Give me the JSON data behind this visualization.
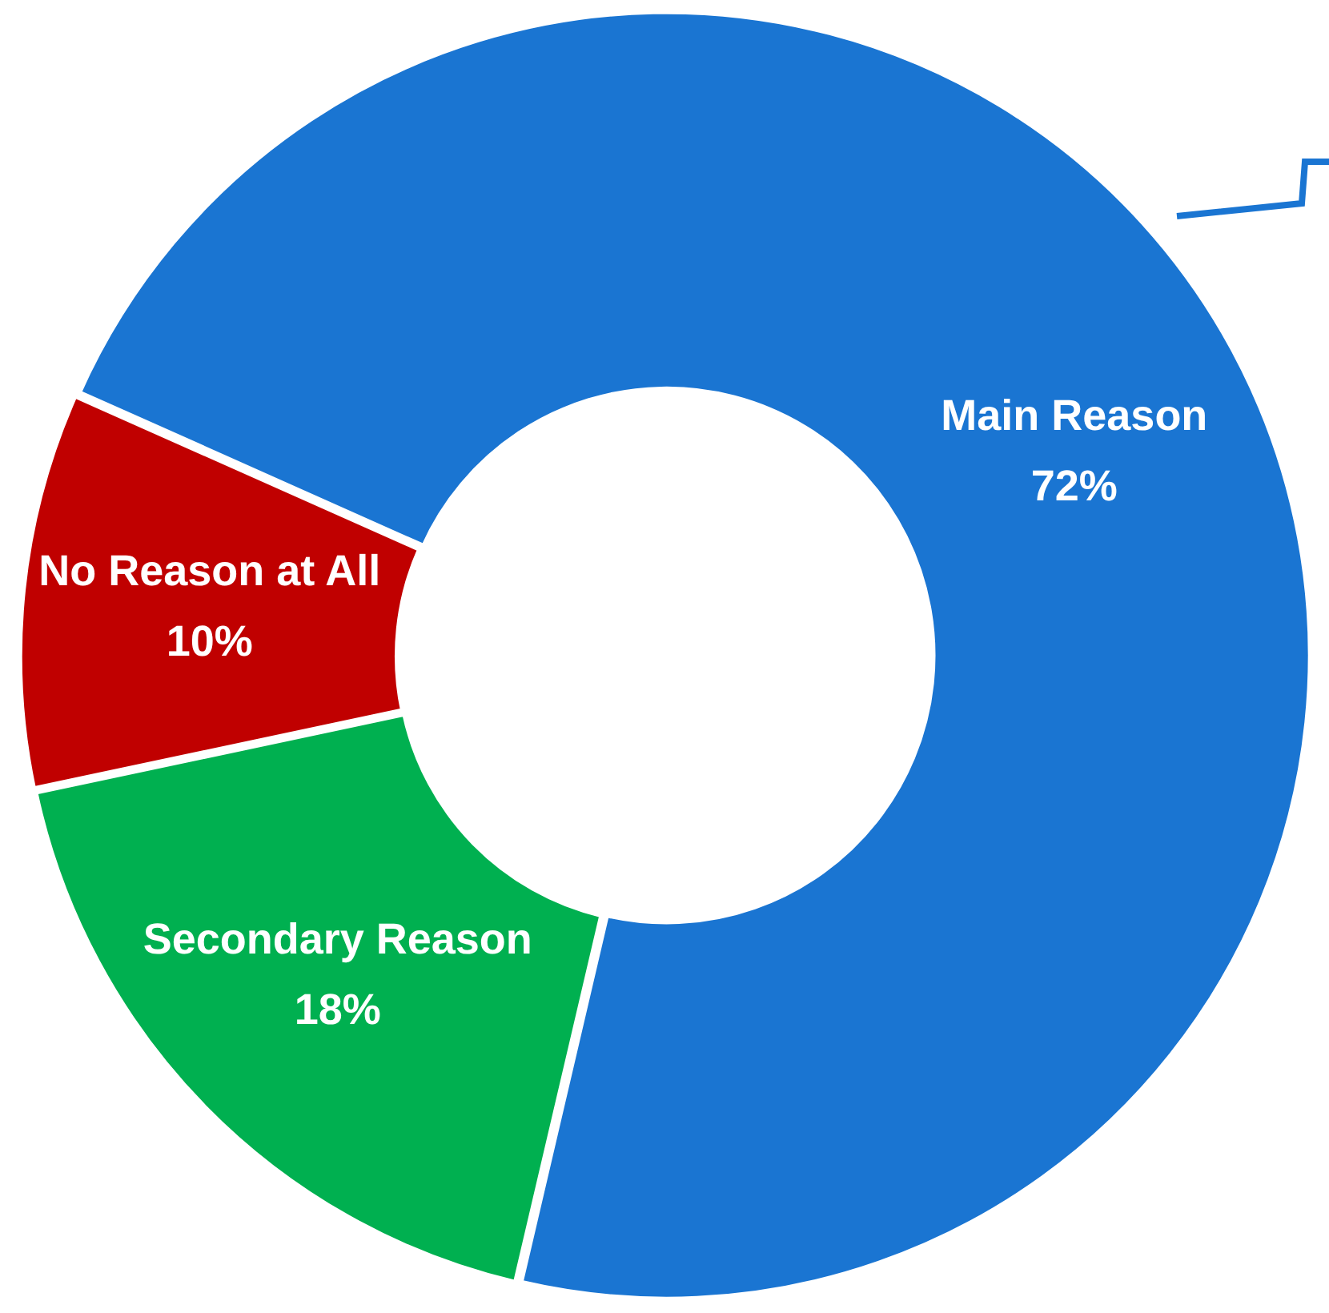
{
  "chart_data": {
    "type": "donut",
    "categories": [
      "Main Reason",
      "Secondary Reason",
      "No Reason at All"
    ],
    "values": [
      72,
      18,
      10
    ],
    "colors": [
      "#1a75d2",
      "#00b050",
      "#c00000"
    ],
    "value_labels": [
      "72%",
      "18%",
      "10%"
    ],
    "legend": false
  }
}
